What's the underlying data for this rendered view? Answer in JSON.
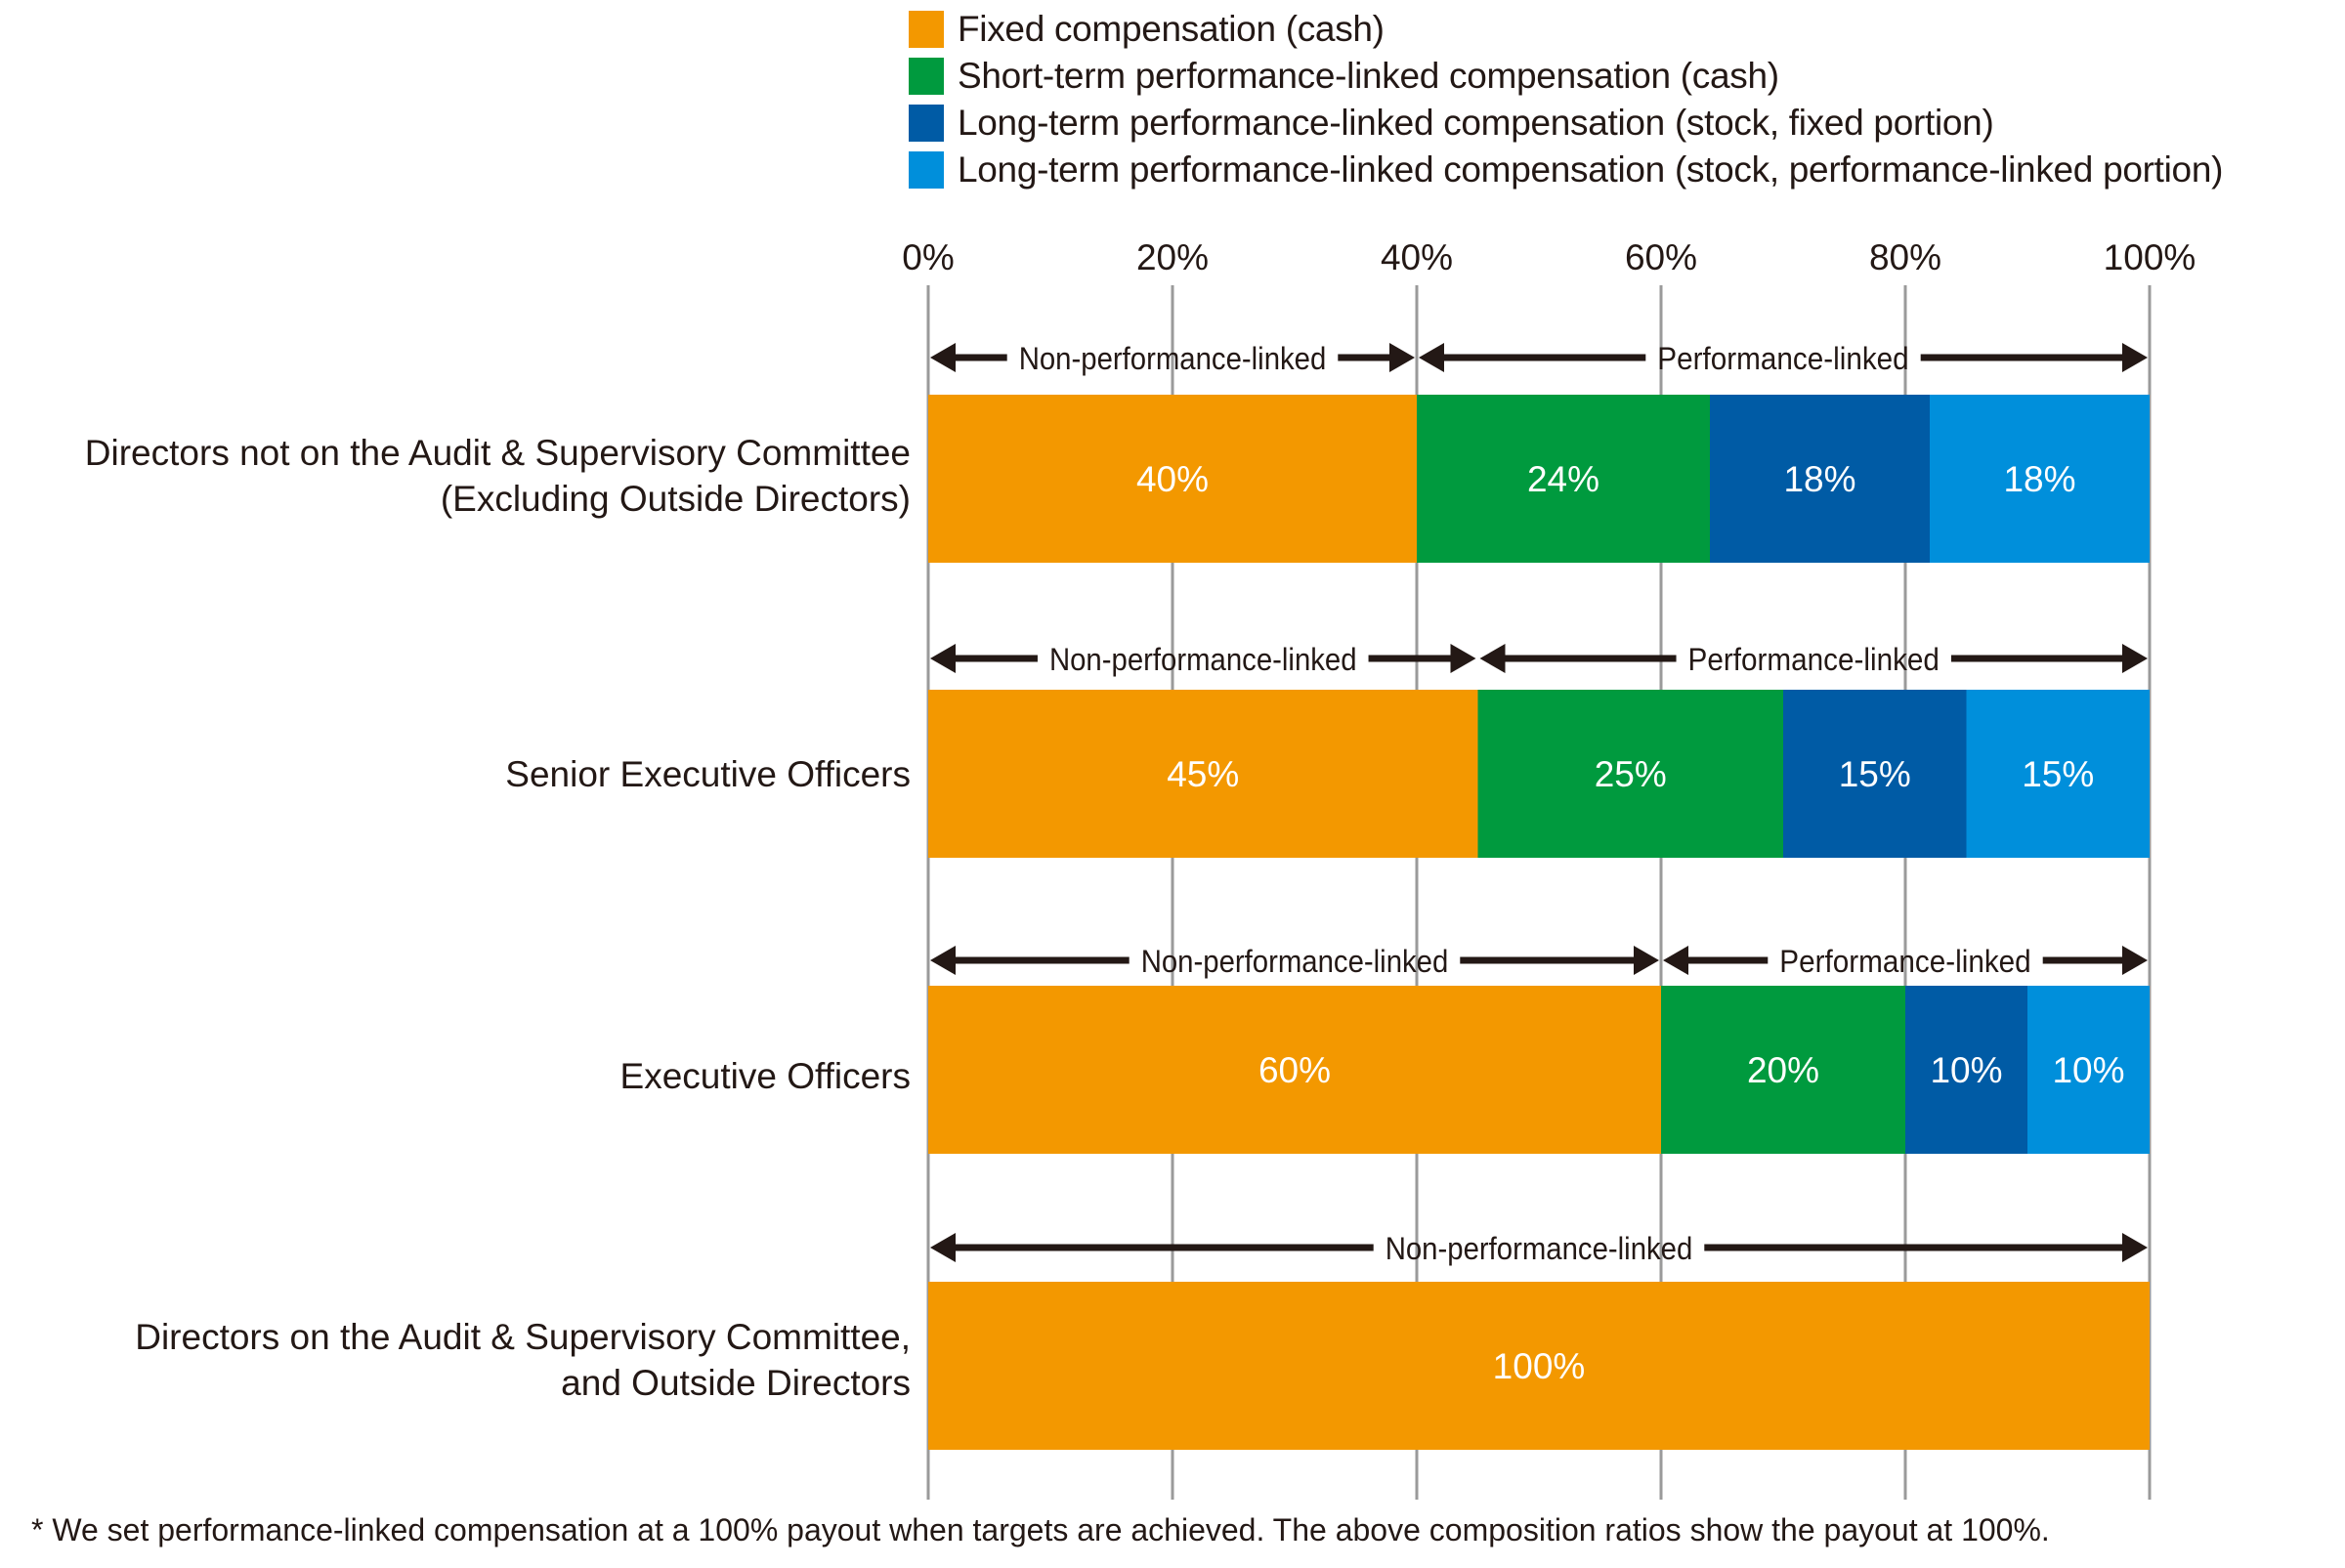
{
  "chart_data": {
    "type": "bar",
    "orientation": "horizontal",
    "stacked": true,
    "title": "",
    "xlabel": "",
    "ylabel": "",
    "xlim": [
      0,
      100
    ],
    "x_ticks": [
      "0%",
      "20%",
      "40%",
      "60%",
      "80%",
      "100%"
    ],
    "grid": true,
    "legend_position": "top-right",
    "categories": [
      "Directors not on the Audit & Supervisory Committee (Excluding Outside Directors)",
      "Senior Executive Officers",
      "Executive Officers",
      "Directors on the Audit & Supervisory Committee, and Outside Directors"
    ],
    "category_label_lines": [
      [
        "Directors not on the Audit & Supervisory Committee",
        "(Excluding Outside Directors)"
      ],
      [
        "Senior Executive Officers"
      ],
      [
        "Executive Officers"
      ],
      [
        "Directors on the Audit & Supervisory Committee,",
        "and Outside Directors"
      ]
    ],
    "series": [
      {
        "name": "Fixed compensation (cash)",
        "color": "#F39800",
        "values": [
          40,
          45,
          60,
          100
        ]
      },
      {
        "name": "Short-term performance-linked compensation (cash)",
        "color": "#009A3E",
        "values": [
          24,
          25,
          20,
          0
        ]
      },
      {
        "name": "Long-term performance-linked compensation (stock, fixed portion)",
        "color": "#005BA5",
        "values": [
          18,
          15,
          10,
          0
        ]
      },
      {
        "name": "Long-term performance-linked compensation (stock, performance-linked portion)",
        "color": "#008FDB",
        "values": [
          18,
          15,
          10,
          0
        ]
      }
    ],
    "annotations": [
      [
        {
          "label": "Non-performance-linked",
          "from": 0,
          "to": 40
        },
        {
          "label": "Performance-linked",
          "from": 40,
          "to": 100
        }
      ],
      [
        {
          "label": "Non-performance-linked",
          "from": 0,
          "to": 45
        },
        {
          "label": "Performance-linked",
          "from": 45,
          "to": 100
        }
      ],
      [
        {
          "label": "Non-performance-linked",
          "from": 0,
          "to": 60
        },
        {
          "label": "Performance-linked",
          "from": 60,
          "to": 100
        }
      ],
      [
        {
          "label": "Non-performance-linked",
          "from": 0,
          "to": 100
        }
      ]
    ],
    "footnote": "* We set performance-linked compensation at a 100% payout when targets are achieved. The above composition ratios show the payout at 100%."
  }
}
